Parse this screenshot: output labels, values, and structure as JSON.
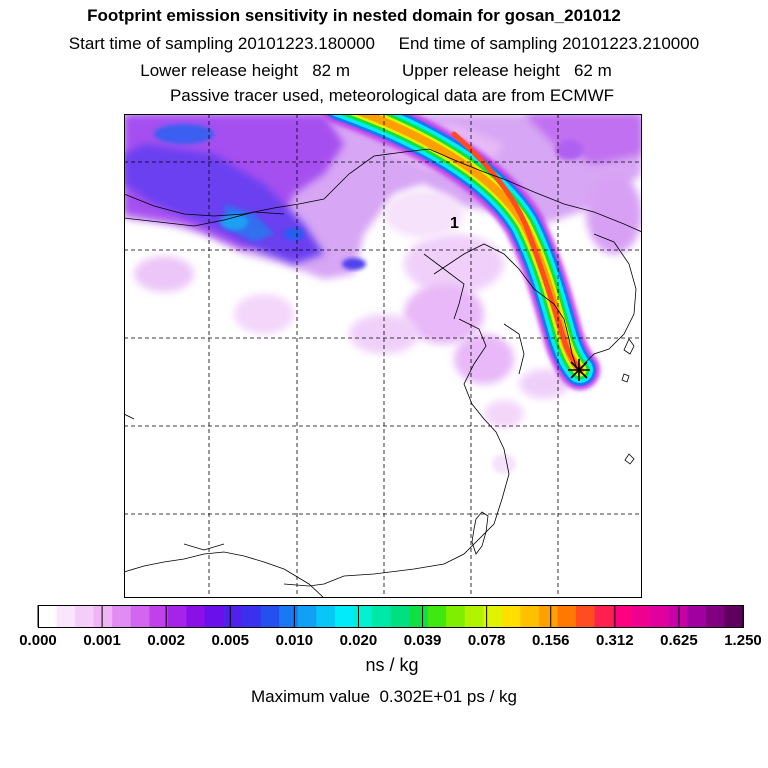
{
  "titles": {
    "line1": "Footprint emission sensitivity in nested domain for gosan_201012",
    "line2": "Start time of sampling 20101223.180000     End time of sampling 20101223.210000",
    "line3": "Lower release height   82 m           Upper release height   62 m",
    "line4": "Passive tracer used, meteorological data are from ECMWF"
  },
  "map": {
    "release_label": "1"
  },
  "colorbar": {
    "labels": [
      "0.000",
      "0.001",
      "0.002",
      "0.005",
      "0.010",
      "0.020",
      "0.039",
      "0.078",
      "0.156",
      "0.312",
      "0.625",
      "1.250"
    ],
    "colors": [
      "#ffffff",
      "#fae6fc",
      "#f4cdf9",
      "#eeb4f6",
      "#e08cf2",
      "#d266ee",
      "#c040ec",
      "#a624ea",
      "#8a10e8",
      "#6a10ea",
      "#5020ec",
      "#3a30ee",
      "#2550f0",
      "#1a78f2",
      "#10a0f4",
      "#08c6f6",
      "#00ecf8",
      "#00f0d0",
      "#00e8a8",
      "#00e080",
      "#10e040",
      "#40e810",
      "#80ee00",
      "#b0f200",
      "#e0f400",
      "#ffe000",
      "#ffc000",
      "#ffa000",
      "#ff7800",
      "#ff4c20",
      "#ff2050",
      "#ff0080",
      "#f00090",
      "#e000a0",
      "#c800a8",
      "#a000a0",
      "#800080",
      "#60005e"
    ],
    "unit": "ns / kg"
  },
  "maximum": "Maximum value  0.302E+01 ps / kg"
}
